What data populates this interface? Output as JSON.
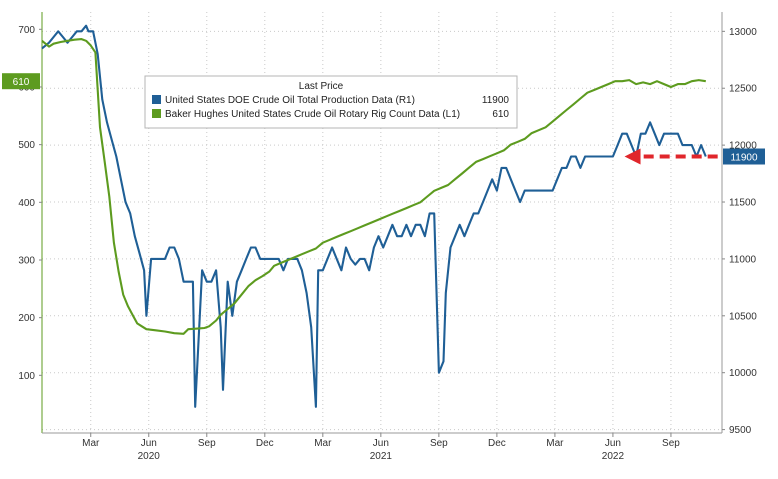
{
  "chart_data": {
    "type": "line",
    "legend": {
      "title": "Last Price",
      "placement": "top-center",
      "entries": [
        {
          "label": "United States DOE Crude Oil Total Production Data  (R1)",
          "value": "11900",
          "color": "#1f5f96"
        },
        {
          "label": "Baker Hughes United States Crude Oil Rotary Rig Count Data  (L1)",
          "value": "610",
          "color": "#5d9b1f"
        }
      ]
    },
    "left_axis": {
      "ticks": [
        100,
        200,
        300,
        400,
        500,
        600,
        700
      ],
      "range": [
        0,
        730
      ],
      "last_value_label": "610",
      "color": "#5d9b1f"
    },
    "right_axis": {
      "ticks": [
        9500,
        10000,
        10500,
        11000,
        11500,
        12000,
        12500,
        13000
      ],
      "range": [
        9470,
        13170
      ],
      "last_value_label": "11900",
      "color": "#1f5f96"
    },
    "x_axis": {
      "month_ticks": [
        {
          "label": "Mar",
          "x": 2020.16
        },
        {
          "label": "Jun",
          "x": 2020.41
        },
        {
          "label": "Sep",
          "x": 2020.66
        },
        {
          "label": "Dec",
          "x": 2020.91
        },
        {
          "label": "Mar",
          "x": 2021.16
        },
        {
          "label": "Jun",
          "x": 2021.41
        },
        {
          "label": "Sep",
          "x": 2021.66
        },
        {
          "label": "Dec",
          "x": 2021.91
        },
        {
          "label": "Mar",
          "x": 2022.16
        },
        {
          "label": "Jun",
          "x": 2022.41
        },
        {
          "label": "Sep",
          "x": 2022.66
        }
      ],
      "year_labels": [
        {
          "label": "2020",
          "x": 2020.41
        },
        {
          "label": "2021",
          "x": 2021.41
        },
        {
          "label": "2022",
          "x": 2022.41
        }
      ],
      "range": [
        2019.95,
        2022.88
      ]
    },
    "grid": true,
    "annotation": {
      "type": "dashed-arrow",
      "color": "#e0262b",
      "from": [
        2022.87,
        11900
      ],
      "to": [
        2022.46,
        11900
      ]
    },
    "series": [
      {
        "name": "United States DOE Crude Oil Total Production Data",
        "axis": "right",
        "color": "#1f5f96",
        "points": [
          [
            2019.95,
            12850
          ],
          [
            2019.98,
            12900
          ],
          [
            2020.0,
            12950
          ],
          [
            2020.02,
            13000
          ],
          [
            2020.04,
            12950
          ],
          [
            2020.06,
            12900
          ],
          [
            2020.08,
            12950
          ],
          [
            2020.1,
            13000
          ],
          [
            2020.12,
            13000
          ],
          [
            2020.14,
            13050
          ],
          [
            2020.15,
            13000
          ],
          [
            2020.17,
            13000
          ],
          [
            2020.19,
            12800
          ],
          [
            2020.21,
            12400
          ],
          [
            2020.23,
            12200
          ],
          [
            2020.25,
            12050
          ],
          [
            2020.27,
            11900
          ],
          [
            2020.29,
            11700
          ],
          [
            2020.31,
            11500
          ],
          [
            2020.33,
            11400
          ],
          [
            2020.35,
            11200
          ],
          [
            2020.37,
            11050
          ],
          [
            2020.39,
            10900
          ],
          [
            2020.4,
            10500
          ],
          [
            2020.42,
            11000
          ],
          [
            2020.44,
            11000
          ],
          [
            2020.46,
            11000
          ],
          [
            2020.48,
            11000
          ],
          [
            2020.5,
            11100
          ],
          [
            2020.52,
            11100
          ],
          [
            2020.54,
            11000
          ],
          [
            2020.56,
            10800
          ],
          [
            2020.58,
            10800
          ],
          [
            2020.6,
            10800
          ],
          [
            2020.61,
            9700
          ],
          [
            2020.63,
            10500
          ],
          [
            2020.64,
            10900
          ],
          [
            2020.66,
            10800
          ],
          [
            2020.68,
            10800
          ],
          [
            2020.7,
            10900
          ],
          [
            2020.72,
            10400
          ],
          [
            2020.73,
            9850
          ],
          [
            2020.75,
            10800
          ],
          [
            2020.77,
            10500
          ],
          [
            2020.79,
            10800
          ],
          [
            2020.81,
            10900
          ],
          [
            2020.83,
            11000
          ],
          [
            2020.85,
            11100
          ],
          [
            2020.87,
            11100
          ],
          [
            2020.89,
            11000
          ],
          [
            2020.91,
            11000
          ],
          [
            2020.93,
            11000
          ],
          [
            2020.95,
            11000
          ],
          [
            2020.97,
            11000
          ],
          [
            2020.99,
            10900
          ],
          [
            2021.01,
            11000
          ],
          [
            2021.03,
            11000
          ],
          [
            2021.05,
            11000
          ],
          [
            2021.07,
            10900
          ],
          [
            2021.09,
            10700
          ],
          [
            2021.11,
            10400
          ],
          [
            2021.13,
            9700
          ],
          [
            2021.14,
            10900
          ],
          [
            2021.16,
            10900
          ],
          [
            2021.18,
            11000
          ],
          [
            2021.2,
            11100
          ],
          [
            2021.22,
            11000
          ],
          [
            2021.24,
            10900
          ],
          [
            2021.26,
            11100
          ],
          [
            2021.28,
            11000
          ],
          [
            2021.3,
            10950
          ],
          [
            2021.32,
            11000
          ],
          [
            2021.34,
            11000
          ],
          [
            2021.36,
            10900
          ],
          [
            2021.38,
            11100
          ],
          [
            2021.4,
            11200
          ],
          [
            2021.42,
            11100
          ],
          [
            2021.44,
            11200
          ],
          [
            2021.46,
            11300
          ],
          [
            2021.48,
            11200
          ],
          [
            2021.5,
            11200
          ],
          [
            2021.52,
            11300
          ],
          [
            2021.54,
            11200
          ],
          [
            2021.56,
            11300
          ],
          [
            2021.58,
            11300
          ],
          [
            2021.6,
            11200
          ],
          [
            2021.62,
            11400
          ],
          [
            2021.64,
            11400
          ],
          [
            2021.66,
            10000
          ],
          [
            2021.68,
            10100
          ],
          [
            2021.69,
            10700
          ],
          [
            2021.71,
            11100
          ],
          [
            2021.73,
            11200
          ],
          [
            2021.75,
            11300
          ],
          [
            2021.77,
            11200
          ],
          [
            2021.79,
            11300
          ],
          [
            2021.81,
            11400
          ],
          [
            2021.83,
            11400
          ],
          [
            2021.85,
            11500
          ],
          [
            2021.87,
            11600
          ],
          [
            2021.89,
            11700
          ],
          [
            2021.91,
            11600
          ],
          [
            2021.93,
            11800
          ],
          [
            2021.95,
            11800
          ],
          [
            2021.97,
            11700
          ],
          [
            2021.99,
            11600
          ],
          [
            2022.01,
            11500
          ],
          [
            2022.03,
            11600
          ],
          [
            2022.05,
            11600
          ],
          [
            2022.07,
            11600
          ],
          [
            2022.09,
            11600
          ],
          [
            2022.11,
            11600
          ],
          [
            2022.13,
            11600
          ],
          [
            2022.15,
            11600
          ],
          [
            2022.17,
            11700
          ],
          [
            2022.19,
            11800
          ],
          [
            2022.21,
            11800
          ],
          [
            2022.23,
            11900
          ],
          [
            2022.25,
            11900
          ],
          [
            2022.27,
            11800
          ],
          [
            2022.29,
            11900
          ],
          [
            2022.31,
            11900
          ],
          [
            2022.33,
            11900
          ],
          [
            2022.35,
            11900
          ],
          [
            2022.37,
            11900
          ],
          [
            2022.39,
            11900
          ],
          [
            2022.41,
            11900
          ],
          [
            2022.43,
            12000
          ],
          [
            2022.45,
            12100
          ],
          [
            2022.47,
            12100
          ],
          [
            2022.49,
            12000
          ],
          [
            2022.51,
            11900
          ],
          [
            2022.53,
            12100
          ],
          [
            2022.55,
            12100
          ],
          [
            2022.57,
            12200
          ],
          [
            2022.59,
            12100
          ],
          [
            2022.61,
            12000
          ],
          [
            2022.63,
            12100
          ],
          [
            2022.65,
            12100
          ],
          [
            2022.67,
            12100
          ],
          [
            2022.69,
            12100
          ],
          [
            2022.71,
            12000
          ],
          [
            2022.73,
            12000
          ],
          [
            2022.75,
            12000
          ],
          [
            2022.77,
            11900
          ],
          [
            2022.79,
            12000
          ],
          [
            2022.81,
            11900
          ]
        ]
      },
      {
        "name": "Baker Hughes United States Crude Oil Rotary Rig Count Data",
        "axis": "left",
        "color": "#5d9b1f",
        "points": [
          [
            2019.95,
            680
          ],
          [
            2019.98,
            670
          ],
          [
            2020.0,
            675
          ],
          [
            2020.03,
            678
          ],
          [
            2020.06,
            680
          ],
          [
            2020.09,
            682
          ],
          [
            2020.12,
            683
          ],
          [
            2020.14,
            680
          ],
          [
            2020.16,
            672
          ],
          [
            2020.18,
            660
          ],
          [
            2020.2,
            530
          ],
          [
            2020.22,
            470
          ],
          [
            2020.24,
            410
          ],
          [
            2020.26,
            330
          ],
          [
            2020.28,
            280
          ],
          [
            2020.3,
            240
          ],
          [
            2020.32,
            220
          ],
          [
            2020.34,
            205
          ],
          [
            2020.36,
            190
          ],
          [
            2020.38,
            185
          ],
          [
            2020.4,
            180
          ],
          [
            2020.44,
            178
          ],
          [
            2020.48,
            176
          ],
          [
            2020.52,
            173
          ],
          [
            2020.56,
            172
          ],
          [
            2020.58,
            180
          ],
          [
            2020.62,
            181
          ],
          [
            2020.65,
            182
          ],
          [
            2020.67,
            185
          ],
          [
            2020.7,
            195
          ],
          [
            2020.72,
            205
          ],
          [
            2020.75,
            215
          ],
          [
            2020.78,
            225
          ],
          [
            2020.81,
            240
          ],
          [
            2020.84,
            255
          ],
          [
            2020.87,
            265
          ],
          [
            2020.9,
            272
          ],
          [
            2020.93,
            280
          ],
          [
            2020.95,
            290
          ],
          [
            2020.98,
            295
          ],
          [
            2021.01,
            300
          ],
          [
            2021.04,
            305
          ],
          [
            2021.07,
            310
          ],
          [
            2021.1,
            315
          ],
          [
            2021.13,
            320
          ],
          [
            2021.16,
            330
          ],
          [
            2021.19,
            335
          ],
          [
            2021.22,
            340
          ],
          [
            2021.25,
            345
          ],
          [
            2021.28,
            350
          ],
          [
            2021.31,
            355
          ],
          [
            2021.34,
            360
          ],
          [
            2021.37,
            365
          ],
          [
            2021.4,
            370
          ],
          [
            2021.43,
            375
          ],
          [
            2021.46,
            380
          ],
          [
            2021.49,
            385
          ],
          [
            2021.52,
            390
          ],
          [
            2021.55,
            395
          ],
          [
            2021.58,
            400
          ],
          [
            2021.61,
            410
          ],
          [
            2021.64,
            420
          ],
          [
            2021.67,
            425
          ],
          [
            2021.7,
            430
          ],
          [
            2021.73,
            440
          ],
          [
            2021.76,
            450
          ],
          [
            2021.79,
            460
          ],
          [
            2021.82,
            470
          ],
          [
            2021.85,
            475
          ],
          [
            2021.88,
            480
          ],
          [
            2021.91,
            485
          ],
          [
            2021.94,
            490
          ],
          [
            2021.97,
            500
          ],
          [
            2022.0,
            505
          ],
          [
            2022.03,
            510
          ],
          [
            2022.06,
            520
          ],
          [
            2022.09,
            525
          ],
          [
            2022.12,
            530
          ],
          [
            2022.15,
            540
          ],
          [
            2022.18,
            550
          ],
          [
            2022.21,
            560
          ],
          [
            2022.24,
            570
          ],
          [
            2022.27,
            580
          ],
          [
            2022.3,
            590
          ],
          [
            2022.33,
            595
          ],
          [
            2022.36,
            600
          ],
          [
            2022.39,
            605
          ],
          [
            2022.42,
            610
          ],
          [
            2022.45,
            610
          ],
          [
            2022.48,
            612
          ],
          [
            2022.51,
            605
          ],
          [
            2022.54,
            608
          ],
          [
            2022.57,
            605
          ],
          [
            2022.6,
            610
          ],
          [
            2022.63,
            605
          ],
          [
            2022.66,
            600
          ],
          [
            2022.69,
            605
          ],
          [
            2022.72,
            605
          ],
          [
            2022.75,
            610
          ],
          [
            2022.78,
            612
          ],
          [
            2022.81,
            610
          ]
        ]
      }
    ]
  }
}
